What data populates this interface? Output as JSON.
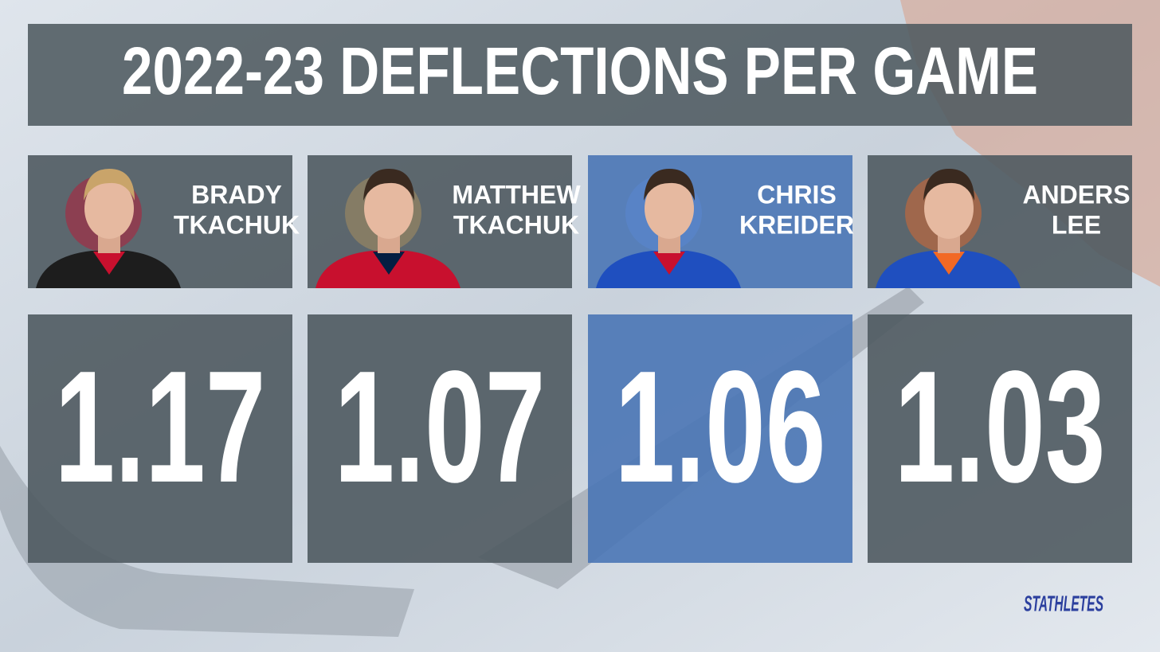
{
  "title": "2022-23 DEFLECTIONS PER GAME",
  "players": [
    {
      "name": [
        "BRADY",
        "TKACHUK"
      ],
      "value": 1.17
    },
    {
      "name": [
        "MATTHEW",
        "TKACHUK"
      ],
      "value": 1.07
    },
    {
      "name": [
        "CHRIS",
        "KREIDER"
      ],
      "value": 1.06
    },
    {
      "name": [
        "ANDERS",
        "LEE"
      ],
      "value": 1.03
    }
  ],
  "brand": "STATHLETES"
}
